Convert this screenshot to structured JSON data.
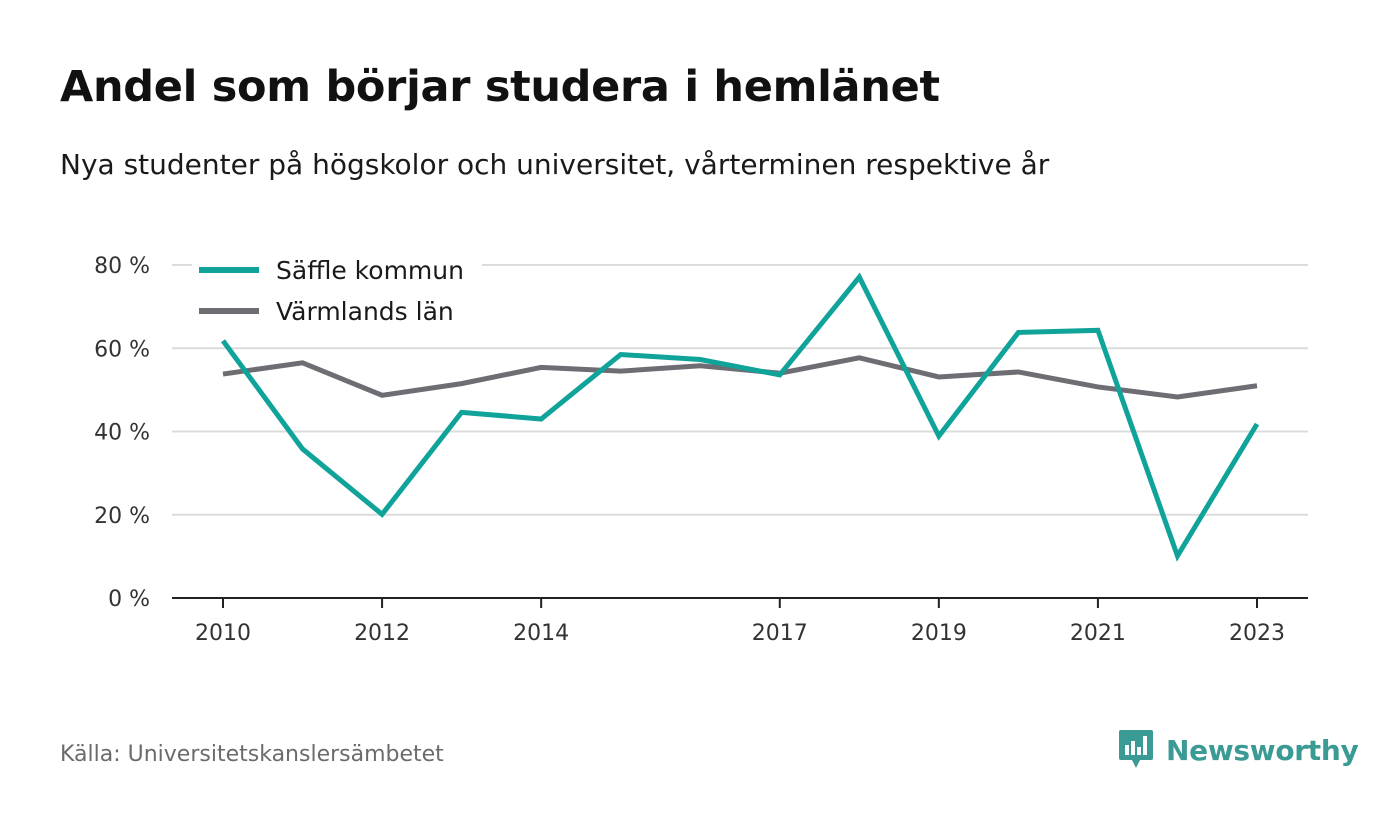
{
  "title": "Andel som börjar studera i hemlänet",
  "subtitle": "Nya studenter på högskolor och universitet, vårterminen respektive år",
  "source": "Källa: Universitetskanslersämbetet",
  "brand": "Newsworthy",
  "colors": {
    "series1": "#0fa39a",
    "series2": "#6e6d73",
    "grid": "#dcdcdc",
    "axis": "#222222",
    "brand": "#3a9a94"
  },
  "chart_data": {
    "type": "line",
    "title": "Andel som börjar studera i hemlänet",
    "subtitle": "Nya studenter på högskolor och universitet, vårterminen respektive år",
    "x": [
      2010,
      2011,
      2012,
      2013,
      2014,
      2015,
      2016,
      2017,
      2018,
      2019,
      2020,
      2021,
      2022,
      2023
    ],
    "x_tick_values": [
      2010,
      2012,
      2014,
      2017,
      2019,
      2021,
      2023
    ],
    "x_tick_labels": [
      "2010",
      "2012",
      "2014",
      "2017",
      "2019",
      "2021",
      "2023"
    ],
    "ylim": [
      0,
      80
    ],
    "y_ticks": [
      0,
      20,
      40,
      60,
      80
    ],
    "y_tick_labels": [
      "0 %",
      "20 %",
      "40 %",
      "60 %",
      "80 %"
    ],
    "grid": true,
    "legend_position": "top-left",
    "series": [
      {
        "name": "Säffle kommun",
        "values": [
          61.8,
          35.8,
          20.1,
          44.6,
          43.0,
          58.5,
          57.3,
          53.6,
          77.1,
          38.9,
          63.8,
          64.3,
          10.1,
          41.8
        ]
      },
      {
        "name": "Värmlands län",
        "values": [
          53.8,
          56.5,
          48.7,
          51.5,
          55.4,
          54.5,
          55.8,
          54.0,
          57.7,
          53.1,
          54.3,
          50.7,
          48.3,
          51.0
        ]
      }
    ]
  }
}
